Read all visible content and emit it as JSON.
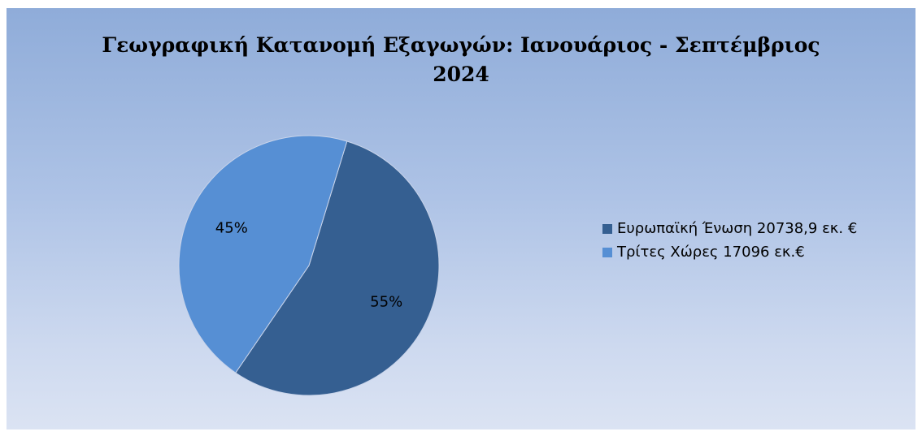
{
  "chart_data": {
    "type": "pie",
    "title_lines": [
      "Γεωγραφική Κατανομή Εξαγωγών: Ιανουάριος - Σεπτέμβριος",
      "2024"
    ],
    "slices": [
      {
        "label": "Ευρωπαϊκή Ένωση 20738,9 εκ. €",
        "value": 20738.9,
        "percent_label": "55%",
        "color": "#355f91"
      },
      {
        "label": "Τρίτες Χώρες 17096 εκ.€",
        "value": 17096,
        "percent_label": "45%",
        "color": "#568fd4"
      }
    ],
    "legend_position": "right"
  },
  "colors": {
    "background_top": "#8facd9",
    "background_bottom": "#dbe3f3"
  }
}
